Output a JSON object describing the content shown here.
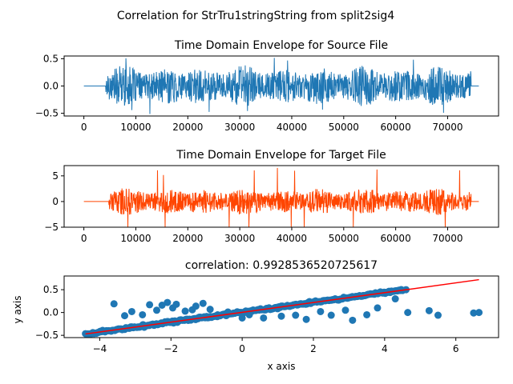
{
  "figure": {
    "suptitle": "Correlation for StrTru1stringString from split2sig4"
  },
  "chart_data": [
    {
      "type": "line",
      "title": "Time Domain Envelope for Source File",
      "color": "#1f77b4",
      "xlim": [
        -3800,
        79800
      ],
      "ylim": [
        -0.55,
        0.55
      ],
      "xticks": [
        0,
        10000,
        20000,
        30000,
        40000,
        50000,
        60000,
        70000
      ],
      "yticks": [
        -0.5,
        0.0,
        0.5
      ],
      "ytick_labels": [
        "−0.5",
        "0.0",
        "0.5"
      ],
      "signal": {
        "x_start": 0,
        "x_end": 76000,
        "onset": 4200,
        "offset": 74500,
        "amplitude": 0.32,
        "peak": 0.52
      },
      "xlabel": "",
      "ylabel": ""
    },
    {
      "type": "line",
      "title": "Time Domain Envelope for Target File",
      "color": "#ff4500",
      "xlim": [
        -3800,
        79800
      ],
      "ylim": [
        -5.0,
        7.0
      ],
      "xticks": [
        0,
        10000,
        20000,
        30000,
        40000,
        50000,
        60000,
        70000
      ],
      "yticks": [
        -5,
        0,
        5
      ],
      "ytick_labels": [
        "−5",
        "0",
        "5"
      ],
      "signal": {
        "x_start": 0,
        "x_end": 76000,
        "onset": 4800,
        "offset": 74500,
        "amplitude": 2.3,
        "peak": 6.6
      },
      "xlabel": "",
      "ylabel": ""
    },
    {
      "type": "scatter",
      "title": "correlation: 0.9928536520725617",
      "point_color": "#1f77b4",
      "fit_color": "#ff0000",
      "xlim": [
        -5.0,
        7.2
      ],
      "ylim": [
        -0.55,
        0.8
      ],
      "xticks": [
        -4,
        -2,
        0,
        2,
        4,
        6
      ],
      "xtick_labels": [
        "−4",
        "−2",
        "0",
        "2",
        "4",
        "6"
      ],
      "yticks": [
        -0.5,
        0.0,
        0.5
      ],
      "ytick_labels": [
        "−0.5",
        "0.0",
        "0.5"
      ],
      "xlabel": "x axis",
      "ylabel": "y axis",
      "fit_line": {
        "x": [
          -4.4,
          6.65
        ],
        "y": [
          -0.47,
          0.72
        ]
      },
      "main_band": {
        "x_min": -4.4,
        "x_max": 4.5,
        "slope": 0.108,
        "intercept": 0.005
      },
      "outliers": [
        {
          "x": -3.6,
          "y": 0.19
        },
        {
          "x": -3.3,
          "y": -0.07
        },
        {
          "x": -3.1,
          "y": 0.02
        },
        {
          "x": -2.8,
          "y": -0.05
        },
        {
          "x": -2.6,
          "y": 0.17
        },
        {
          "x": -2.4,
          "y": 0.05
        },
        {
          "x": -2.25,
          "y": 0.16
        },
        {
          "x": -2.1,
          "y": 0.22
        },
        {
          "x": -1.95,
          "y": 0.1
        },
        {
          "x": -1.85,
          "y": 0.18
        },
        {
          "x": -1.6,
          "y": 0.03
        },
        {
          "x": -1.4,
          "y": 0.06
        },
        {
          "x": -1.3,
          "y": 0.14
        },
        {
          "x": -1.1,
          "y": 0.2
        },
        {
          "x": -0.9,
          "y": 0.07
        },
        {
          "x": -0.7,
          "y": -0.09
        },
        {
          "x": -0.4,
          "y": 0.01
        },
        {
          "x": 0.0,
          "y": -0.12
        },
        {
          "x": 0.2,
          "y": -0.05
        },
        {
          "x": 0.6,
          "y": -0.12
        },
        {
          "x": 1.1,
          "y": -0.08
        },
        {
          "x": 1.5,
          "y": -0.06
        },
        {
          "x": 1.8,
          "y": -0.15
        },
        {
          "x": 2.2,
          "y": 0.02
        },
        {
          "x": 2.5,
          "y": -0.06
        },
        {
          "x": 2.9,
          "y": 0.05
        },
        {
          "x": 3.1,
          "y": -0.17
        },
        {
          "x": 3.5,
          "y": -0.05
        },
        {
          "x": 3.8,
          "y": 0.1
        },
        {
          "x": 4.3,
          "y": 0.3
        },
        {
          "x": 4.6,
          "y": 0.5
        },
        {
          "x": 4.65,
          "y": 0.0
        },
        {
          "x": 5.25,
          "y": 0.04
        },
        {
          "x": 5.5,
          "y": -0.06
        },
        {
          "x": 6.5,
          "y": -0.01
        },
        {
          "x": 6.65,
          "y": 0.0
        }
      ]
    }
  ]
}
